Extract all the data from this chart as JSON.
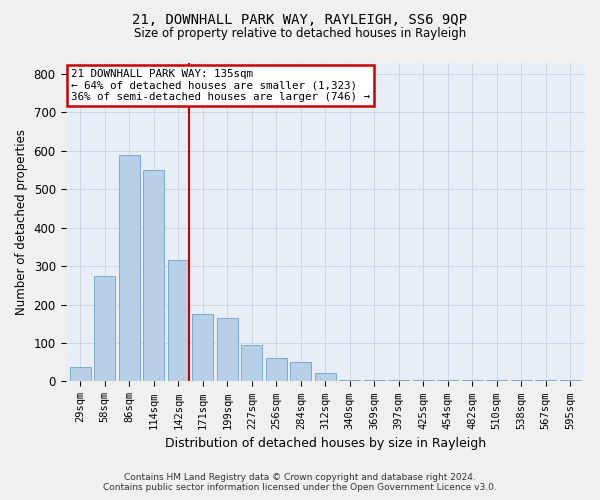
{
  "title1": "21, DOWNHALL PARK WAY, RAYLEIGH, SS6 9QP",
  "title2": "Size of property relative to detached houses in Rayleigh",
  "xlabel": "Distribution of detached houses by size in Rayleigh",
  "ylabel": "Number of detached properties",
  "categories": [
    "29sqm",
    "58sqm",
    "86sqm",
    "114sqm",
    "142sqm",
    "171sqm",
    "199sqm",
    "227sqm",
    "256sqm",
    "284sqm",
    "312sqm",
    "340sqm",
    "369sqm",
    "397sqm",
    "425sqm",
    "454sqm",
    "482sqm",
    "510sqm",
    "538sqm",
    "567sqm",
    "595sqm"
  ],
  "values": [
    38,
    275,
    590,
    550,
    315,
    175,
    165,
    95,
    60,
    50,
    22,
    3,
    3,
    3,
    3,
    3,
    3,
    3,
    3,
    3,
    3
  ],
  "bar_color": "#b8cfe8",
  "bar_edge_color": "#7aaad4",
  "vline_x_idx": 4,
  "vline_color": "#cc0000",
  "annotation_lines": [
    "21 DOWNHALL PARK WAY: 135sqm",
    "← 64% of detached houses are smaller (1,323)",
    "36% of semi-detached houses are larger (746) →"
  ],
  "annotation_box_color": "#ffffff",
  "annotation_box_edge": "#cc0000",
  "ylim": [
    0,
    830
  ],
  "yticks": [
    0,
    100,
    200,
    300,
    400,
    500,
    600,
    700,
    800
  ],
  "grid_color": "#cdd5e3",
  "bg_color": "#e8eef5",
  "fig_color": "#f0f0f0",
  "footnote": "Contains HM Land Registry data © Crown copyright and database right 2024.\nContains public sector information licensed under the Open Government Licence v3.0."
}
